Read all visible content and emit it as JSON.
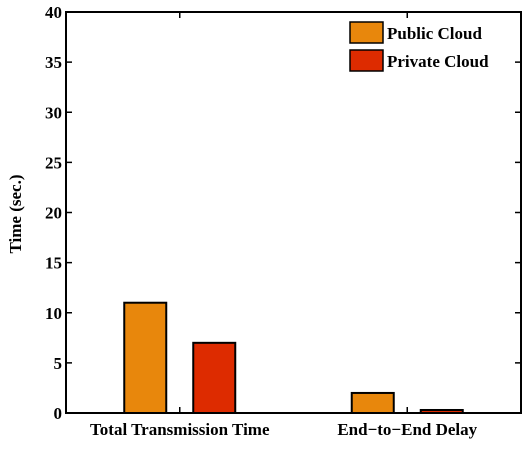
{
  "chart_data": {
    "type": "bar",
    "title": "",
    "xlabel": "",
    "ylabel": "Time (sec.)",
    "categories": [
      "Total Transmission Time",
      "End−to−End Delay"
    ],
    "series": [
      {
        "name": "Public Cloud",
        "color": "#e8870c",
        "values": [
          11,
          2
        ]
      },
      {
        "name": "Private Cloud",
        "color": "#dd2b00",
        "values": [
          7,
          0.3
        ]
      }
    ],
    "ylim": [
      0,
      40
    ],
    "yticks": [
      0,
      5,
      10,
      15,
      20,
      25,
      30,
      35,
      40
    ],
    "grid": false,
    "legend_position": "top-right"
  }
}
